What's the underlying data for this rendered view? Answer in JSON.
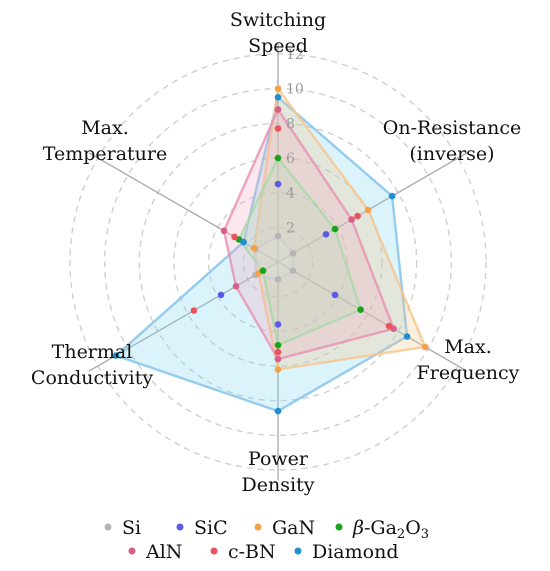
{
  "chart_data": {
    "type": "radar",
    "axes": [
      {
        "lines": [
          "Switching",
          "Speed"
        ]
      },
      {
        "lines": [
          "On-Resistance",
          "(inverse)"
        ]
      },
      {
        "lines": [
          "Max.",
          "Frequency"
        ]
      },
      {
        "lines": [
          "Power",
          "Density"
        ]
      },
      {
        "lines": [
          "Thermal",
          "Conductivity"
        ]
      },
      {
        "lines": [
          "Max.",
          "Temperature"
        ]
      }
    ],
    "radial_ticks": [
      "2",
      "4",
      "6",
      "8",
      "10",
      "12"
    ],
    "rmax": 12,
    "grid": true,
    "legend_position": "bottom",
    "series": [
      {
        "name": "Si",
        "color": "#b5b5b5",
        "values": [
          1.5,
          1.0,
          1.0,
          1.0,
          1.5,
          1.5
        ]
      },
      {
        "name": "SiC",
        "color": "#5b5be6",
        "values": [
          4.5,
          3.2,
          3.8,
          3.6,
          3.8,
          2.3
        ]
      },
      {
        "name": "GaN",
        "color": "#f5a04a",
        "values": [
          10.0,
          6.0,
          9.8,
          6.2,
          1.3,
          1.6
        ]
      },
      {
        "name": "β-Ga2O3",
        "color": "#1aa31a",
        "values": [
          6.0,
          3.8,
          5.5,
          4.8,
          1.0,
          2.6
        ]
      },
      {
        "name": "AlN",
        "color": "#d65f8a",
        "values": [
          8.8,
          4.9,
          7.7,
          5.6,
          2.8,
          3.6
        ]
      },
      {
        "name": "c-BN",
        "color": "#e8545a",
        "values": [
          7.7,
          5.3,
          7.4,
          5.2,
          5.6,
          2.9
        ]
      },
      {
        "name": "Diamond",
        "color": "#1f8fd4",
        "values": [
          9.5,
          7.6,
          8.6,
          8.6,
          10.8,
          2.3
        ]
      }
    ],
    "fills": [
      {
        "series": "Diamond",
        "color": "#7fd3f0",
        "stroke": "#7fbfe8"
      },
      {
        "series": "GaN",
        "color": "#f7c48a",
        "stroke": "#f7c48a"
      },
      {
        "series": "AlN",
        "color": "#f0a8c0",
        "stroke": "#e88fb0"
      },
      {
        "series": "β-Ga2O3",
        "color": "#b8e0b8",
        "stroke": "#a8d8a8"
      },
      {
        "series": "Si",
        "color": "#dddddd",
        "stroke": "#cccccc"
      }
    ]
  }
}
